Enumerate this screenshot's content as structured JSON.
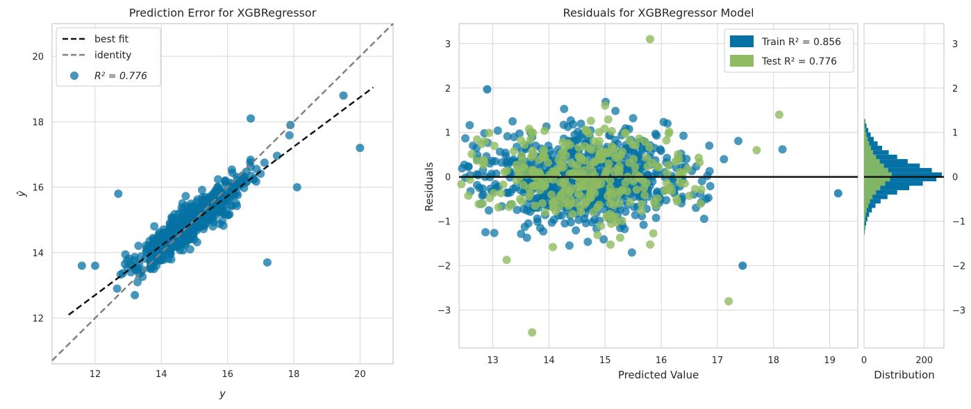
{
  "colors": {
    "train": "#0571a4",
    "test": "#8fbc62",
    "best_fit": "#111111",
    "identity": "#808080",
    "zero_line": "#111111"
  },
  "chart_data": [
    {
      "type": "scatter",
      "title": "Prediction Error for XGBRegressor",
      "xlabel": "y",
      "ylabel": "ŷ",
      "xlim": [
        10.7,
        21.0
      ],
      "ylim": [
        10.6,
        21.0
      ],
      "xticks": [
        "12",
        "14",
        "16",
        "18",
        "20"
      ],
      "yticks": [
        "12",
        "14",
        "16",
        "18",
        "20"
      ],
      "grid": true,
      "legend": {
        "position": "top-left",
        "entries": [
          "best fit",
          "identity",
          "R² = 0.776"
        ]
      },
      "best_fit": {
        "x": [
          11.2,
          20.4
        ],
        "y": [
          12.1,
          19.05
        ]
      },
      "identity": {
        "x": [
          10.7,
          21.0
        ],
        "y": [
          10.7,
          21.0
        ]
      },
      "r2_label": "R² = 0.776",
      "notable_points": [
        {
          "x": 11.6,
          "y": 13.6
        },
        {
          "x": 12.0,
          "y": 13.6
        },
        {
          "x": 12.7,
          "y": 15.8
        },
        {
          "x": 13.2,
          "y": 12.7
        },
        {
          "x": 16.7,
          "y": 18.1
        },
        {
          "x": 17.2,
          "y": 13.7
        },
        {
          "x": 17.9,
          "y": 17.9
        },
        {
          "x": 18.1,
          "y": 16.0
        },
        {
          "x": 19.5,
          "y": 18.8
        },
        {
          "x": 20.0,
          "y": 17.2
        }
      ]
    },
    {
      "type": "scatter",
      "title": "Residuals for XGBRegressor Model",
      "xlabel": "Predicted Value",
      "ylabel": "Residuals",
      "xlim": [
        12.4,
        19.5
      ],
      "ylim": [
        -3.85,
        3.45
      ],
      "xticks": [
        "13",
        "14",
        "15",
        "16",
        "17",
        "18",
        "19"
      ],
      "yticks": [
        "3",
        "2",
        "1",
        "0",
        "−1",
        "−2",
        "−3"
      ],
      "grid": true,
      "legend": {
        "position": "top-right",
        "entries": [
          "Train R² = 0.856",
          "Test R² = 0.776"
        ]
      },
      "series": [
        {
          "name": "Train R² = 0.856",
          "r2": 0.856
        },
        {
          "name": "Test R² = 0.776",
          "r2": 0.776
        }
      ],
      "notable_points": [
        {
          "series": "Test",
          "x": 15.8,
          "y": 3.1
        },
        {
          "series": "Test",
          "x": 13.7,
          "y": -3.5
        },
        {
          "series": "Test",
          "x": 17.2,
          "y": -2.8
        },
        {
          "series": "Train",
          "x": 19.15,
          "y": -0.37
        },
        {
          "series": "Train",
          "x": 17.45,
          "y": -2.0
        },
        {
          "series": "Train",
          "x": 12.9,
          "y": 1.97
        },
        {
          "series": "Test",
          "x": 18.1,
          "y": 1.4
        }
      ]
    },
    {
      "type": "bar",
      "orientation": "horizontal",
      "title": "",
      "xlabel": "Distribution",
      "xticks": [
        "0",
        "200"
      ],
      "yticks": [
        "3",
        "2",
        "1",
        "0",
        "−1",
        "−2",
        "−3"
      ],
      "ylim": [
        -3.85,
        3.45
      ],
      "xlim": [
        0,
        265
      ],
      "bins_center": [
        1.25,
        1.15,
        1.05,
        0.95,
        0.85,
        0.75,
        0.65,
        0.55,
        0.45,
        0.35,
        0.25,
        0.15,
        0.05,
        -0.05,
        -0.15,
        -0.25,
        -0.35,
        -0.45,
        -0.55,
        -0.65,
        -0.75,
        -0.85,
        -0.95,
        -1.05,
        -1.15,
        -1.25
      ],
      "series": [
        {
          "name": "Train",
          "values": [
            4,
            8,
            14,
            22,
            32,
            45,
            60,
            82,
            110,
            145,
            185,
            225,
            258,
            240,
            195,
            150,
            110,
            78,
            55,
            38,
            26,
            17,
            11,
            7,
            4,
            2
          ]
        },
        {
          "name": "Test",
          "values": [
            2,
            3,
            5,
            8,
            12,
            17,
            23,
            30,
            40,
            52,
            66,
            80,
            92,
            86,
            70,
            54,
            40,
            28,
            20,
            14,
            9,
            6,
            4,
            2,
            2,
            1
          ]
        }
      ]
    }
  ]
}
